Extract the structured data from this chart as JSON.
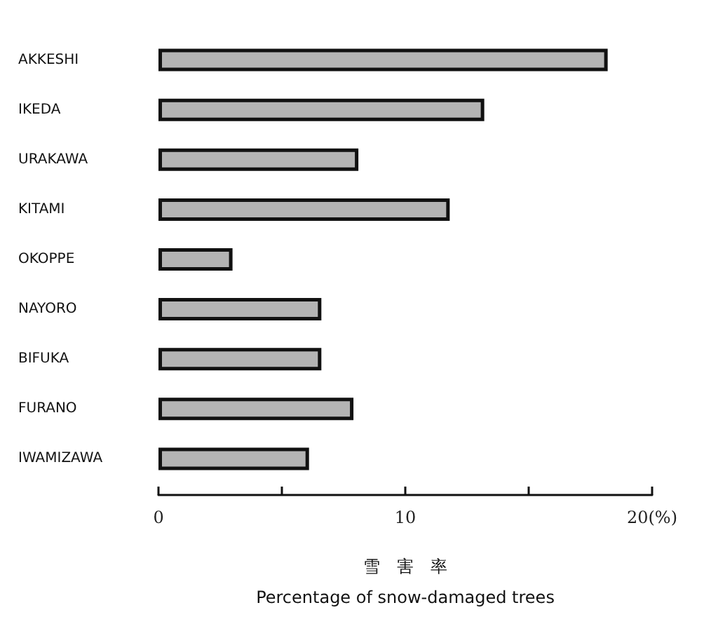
{
  "chart_data": {
    "type": "bar",
    "orientation": "horizontal",
    "categories": [
      "AKKESHI",
      "IKEDA",
      "URAKAWA",
      "KITAMI",
      "OKOPPE",
      "NAYORO",
      "BIFUKA",
      "FURANO",
      "IWAMIZAWA"
    ],
    "values": [
      18.2,
      13.2,
      8.1,
      11.8,
      3.0,
      6.6,
      6.6,
      7.9,
      6.1
    ],
    "color": "#b4b4b4",
    "xlim": [
      0,
      20
    ],
    "xticks": [
      0,
      {
        "value": 5,
        "label": null
      },
      10,
      {
        "value": 15,
        "label": null
      },
      {
        "value": 20,
        "label": "20(%)"
      }
    ],
    "xlabel": "雪　害　率\nPercentage of snow-damaged trees",
    "grid": false
  }
}
